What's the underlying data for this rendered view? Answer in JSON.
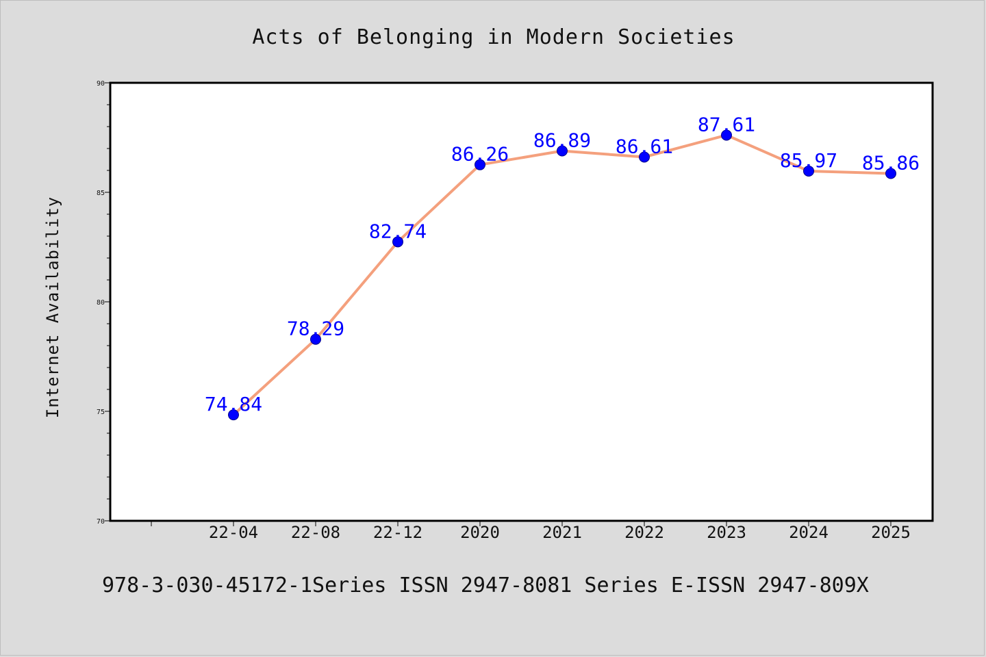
{
  "chart_data": {
    "type": "line",
    "title": "Acts of Belonging in Modern Societies",
    "xlabel": "",
    "ylabel": "Internet Availability",
    "categories": [
      "22-04",
      "22-08",
      "22-12",
      "2020",
      "2021",
      "2022",
      "2023",
      "2024",
      "2025"
    ],
    "series": [
      {
        "values": [
          74.84,
          78.29,
          82.74,
          86.26,
          86.89,
          86.61,
          87.61,
          85.97,
          85.86
        ]
      }
    ],
    "data_labels": [
      "74.84",
      "78.29",
      "82.74",
      "86.26",
      "86.89",
      "86.61",
      "87.61",
      "85.97",
      "85.86"
    ],
    "ylim": [
      70,
      90
    ],
    "y_ticks": [
      "70",
      "75",
      "80",
      "85",
      "90"
    ],
    "grid": false,
    "colors": {
      "line": "#f4a07d",
      "marker": "#0000ff",
      "label": "#0000ff",
      "background": "#dcdcdc",
      "plot": "#ffffff"
    }
  },
  "footer": "978-3-030-45172-1Series ISSN 2947-8081 Series E-ISSN 2947-809X"
}
